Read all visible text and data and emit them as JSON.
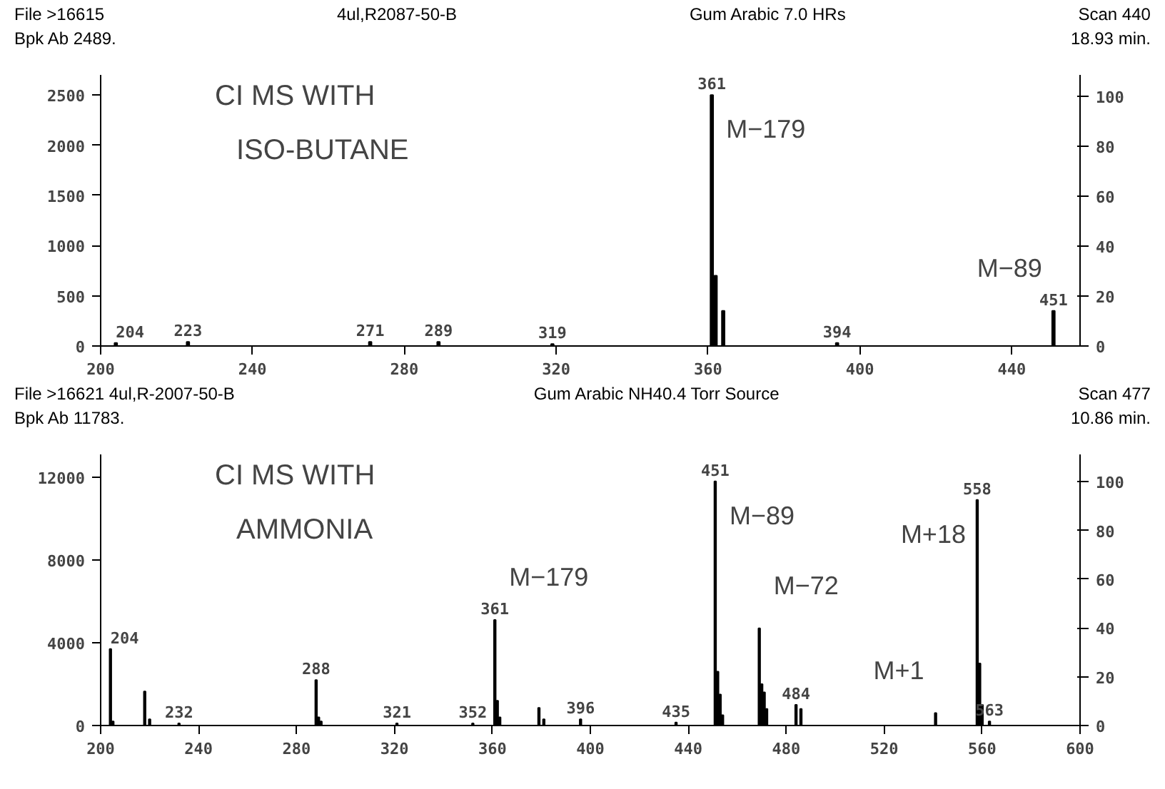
{
  "chart_data": [
    {
      "type": "bar",
      "title": "CI MS WITH",
      "subtitle": "ISO-BUTANE",
      "color": "#000000",
      "x": [
        204,
        223,
        271,
        289,
        319,
        361,
        362,
        364,
        394,
        451
      ],
      "values": [
        30,
        40,
        40,
        40,
        20,
        2500,
        700,
        350,
        30,
        350
      ],
      "xlim": [
        200,
        458
      ],
      "xticks": [
        200,
        240,
        280,
        320,
        360,
        400,
        440
      ],
      "ylim": [
        0,
        2700
      ],
      "yticks": [
        0,
        500,
        1000,
        1500,
        2000,
        2500
      ],
      "y2lim": [
        0,
        108.5
      ],
      "y2ticks": [
        0,
        20,
        40,
        60,
        80,
        100
      ],
      "grid": false,
      "annotations": [
        "File >16615",
        "4ul,R2087-50-B",
        "Gum Arabic 7.0 HRs",
        "Scan 440",
        "Bpk Ab 2489.",
        "18.93 min.",
        {
          "text": "204",
          "x": 204,
          "y": 30
        },
        {
          "text": "223",
          "x": 223,
          "y": 40
        },
        {
          "text": "271",
          "x": 271,
          "y": 40
        },
        {
          "text": "289",
          "x": 289,
          "y": 40
        },
        {
          "text": "319",
          "x": 319,
          "y": 20
        },
        {
          "text": "394",
          "x": 394,
          "y": 30
        },
        {
          "text": "451",
          "x": 451,
          "y": 350
        },
        {
          "text": "361",
          "x": 361,
          "y": 2500
        },
        {
          "text": "M−179",
          "x": 361,
          "y": 2500
        },
        {
          "text": "M−89",
          "x": 451,
          "y": 350
        }
      ]
    },
    {
      "type": "bar",
      "title": "CI MS WITH",
      "subtitle": "AMMONIA",
      "color": "#000000",
      "x": [
        204,
        205,
        218,
        220,
        232,
        288,
        289,
        290,
        321,
        352,
        361,
        362,
        363,
        379,
        381,
        396,
        435,
        451,
        452,
        453,
        454,
        469,
        470,
        471,
        472,
        484,
        486,
        541,
        558,
        559,
        560,
        563
      ],
      "values": [
        3700,
        200,
        1650,
        300,
        100,
        2200,
        400,
        200,
        100,
        100,
        5100,
        1200,
        400,
        850,
        300,
        300,
        150,
        11800,
        2600,
        1500,
        500,
        4700,
        2000,
        1600,
        800,
        1000,
        800,
        600,
        10900,
        3000,
        1000,
        200
      ],
      "xlim": [
        200,
        600
      ],
      "xticks": [
        200,
        240,
        280,
        320,
        360,
        400,
        440,
        480,
        520,
        560,
        600
      ],
      "ylim": [
        0,
        13100
      ],
      "yticks": [
        0,
        4000,
        8000,
        12000
      ],
      "y2lim": [
        0,
        111.2
      ],
      "y2ticks": [
        0,
        20,
        40,
        60,
        80,
        100
      ],
      "grid": false,
      "annotations": [
        "File >16621 4ul,R-2007-50-B",
        "Gum Arabic NH40.4 Torr Source",
        "Scan 477",
        "Bpk Ab 11783.",
        "10.86 min.",
        {
          "text": "204",
          "x": 204,
          "y": 3700
        },
        {
          "text": "232",
          "x": 232,
          "y": 100
        },
        {
          "text": "288",
          "x": 288,
          "y": 2200
        },
        {
          "text": "321",
          "x": 321,
          "y": 100
        },
        {
          "text": "352",
          "x": 352,
          "y": 100
        },
        {
          "text": "361",
          "x": 361,
          "y": 5100
        },
        {
          "text": "M−179",
          "x": 361,
          "y": 5100
        },
        {
          "text": "396",
          "x": 396,
          "y": 300
        },
        {
          "text": "435",
          "x": 435,
          "y": 150
        },
        {
          "text": "451",
          "x": 451,
          "y": 11800
        },
        {
          "text": "M−89",
          "x": 451,
          "y": 11800
        },
        {
          "text": "M−72",
          "x": 469,
          "y": 4700
        },
        {
          "text": "484",
          "x": 484,
          "y": 1000
        },
        {
          "text": "M+1",
          "x": 541,
          "y": 600
        },
        {
          "text": "558",
          "x": 558,
          "y": 10900
        },
        {
          "text": "M+18",
          "x": 558,
          "y": 10900
        },
        {
          "text": "563",
          "x": 563,
          "y": 200
        }
      ]
    }
  ]
}
